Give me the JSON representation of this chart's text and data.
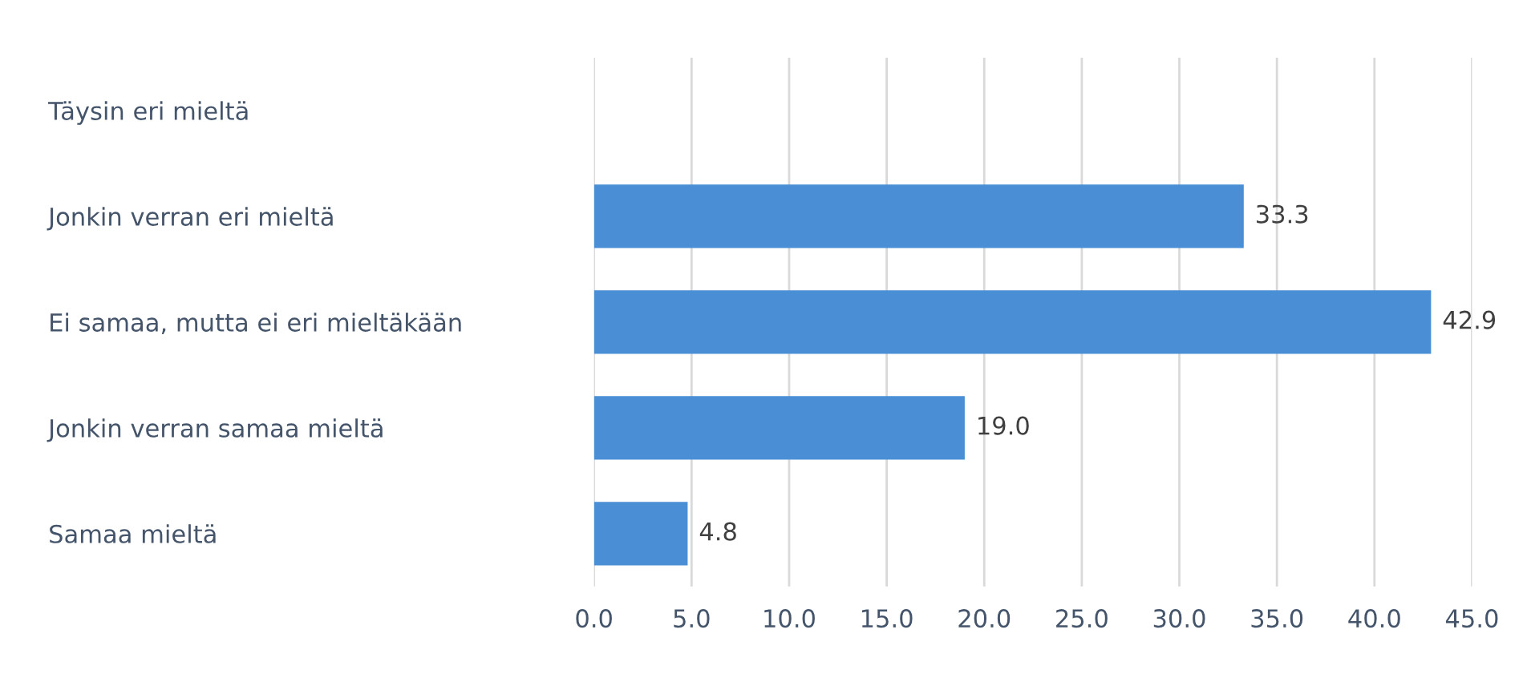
{
  "chart_data": {
    "type": "bar",
    "orientation": "horizontal",
    "categories": [
      "Täysin eri mieltä",
      "Jonkin verran eri mieltä",
      "Ei samaa, mutta ei eri mieltäkään",
      "Jonkin verran samaa mieltä",
      "Samaa mieltä"
    ],
    "values": [
      null,
      33.3,
      42.9,
      19.0,
      4.8
    ],
    "value_labels": [
      null,
      "33.3",
      "42.9",
      "19.0",
      "4.8"
    ],
    "color": "#4a8fd6",
    "xlim": [
      0,
      45
    ],
    "xticks": [
      {
        "value": 0,
        "label": "0.0"
      },
      {
        "value": 5,
        "label": "5.0"
      },
      {
        "value": 10,
        "label": "10.0"
      },
      {
        "value": 15,
        "label": "15.0"
      },
      {
        "value": 20,
        "label": "20.0"
      },
      {
        "value": 25,
        "label": "25.0"
      },
      {
        "value": 30,
        "label": "30.0"
      },
      {
        "value": 35,
        "label": "35.0"
      },
      {
        "value": 40,
        "label": "40.0"
      },
      {
        "value": 45,
        "label": "45.0"
      }
    ],
    "grid": "x"
  }
}
